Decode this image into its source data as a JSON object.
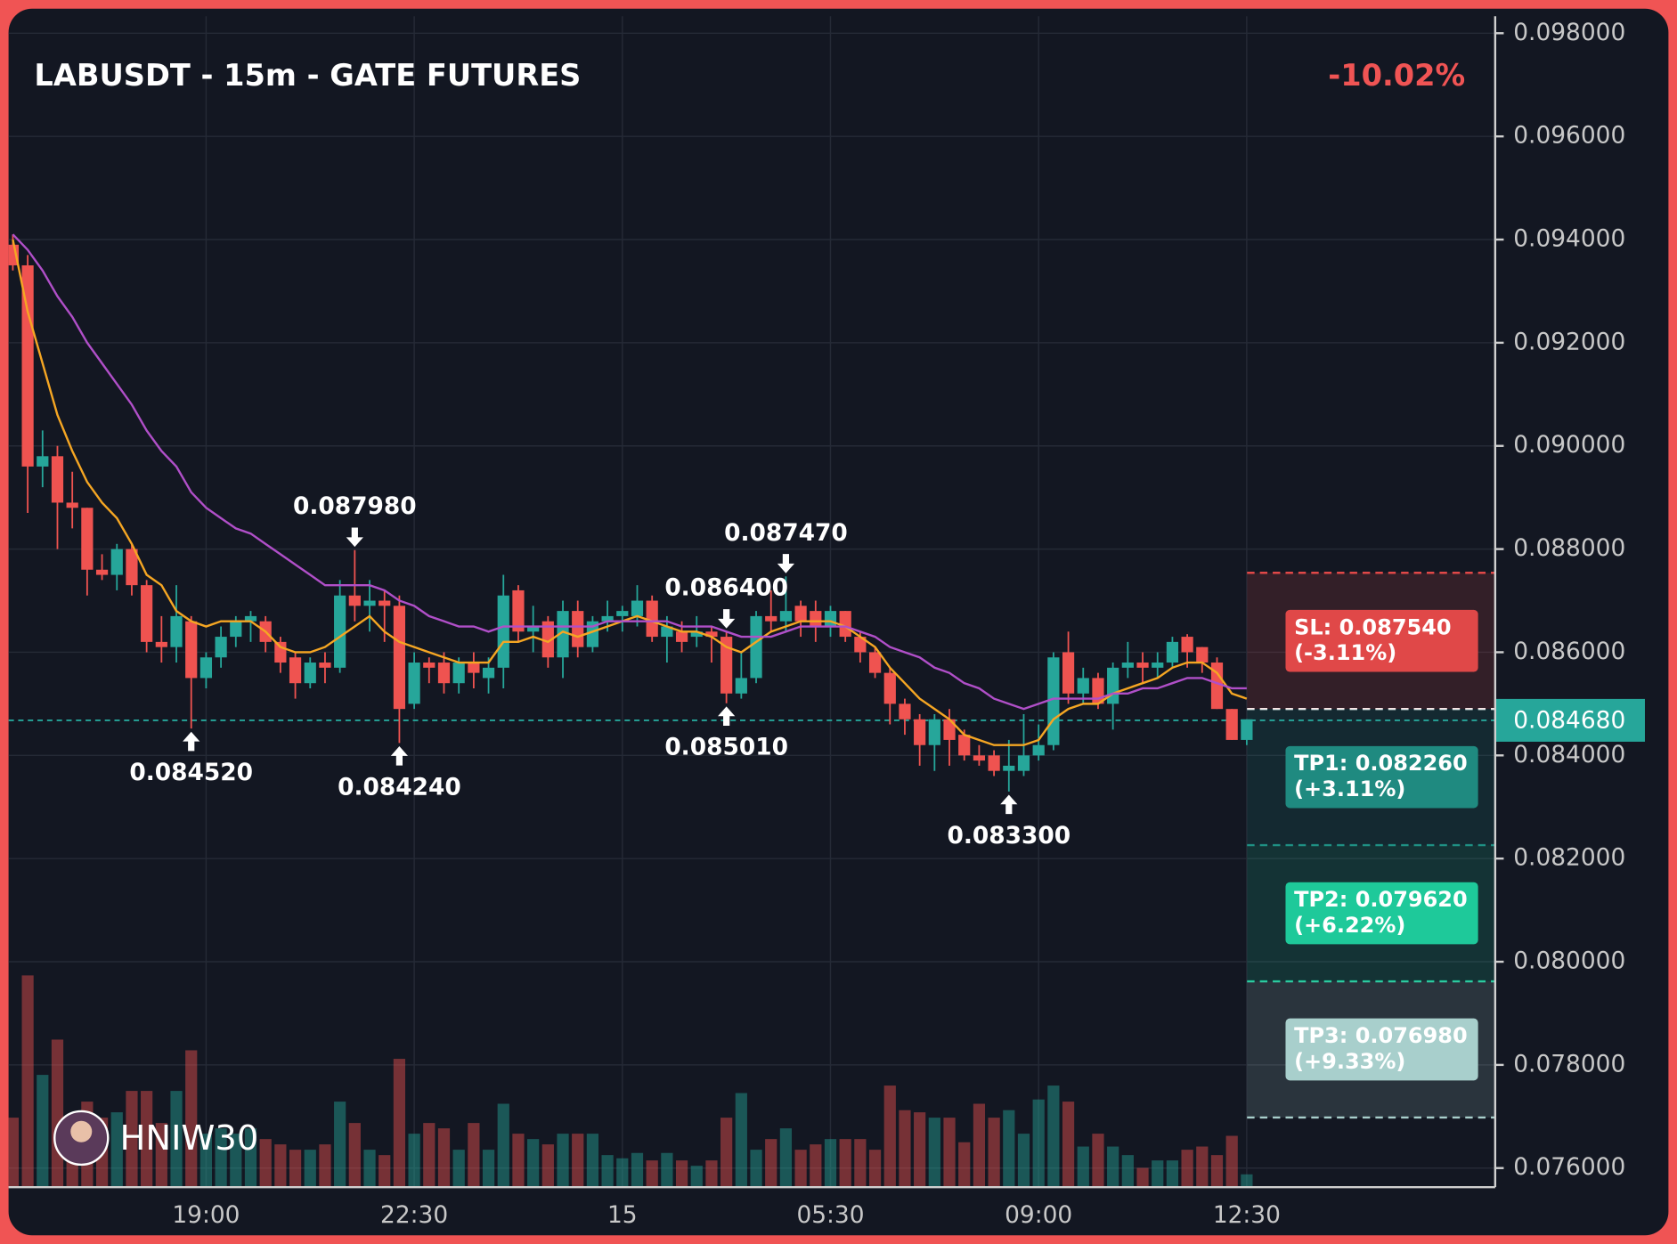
{
  "chart_data": {
    "type": "candlestick",
    "title": "LABUSDT - 15m - GATE FUTURES",
    "change": "-10.02%",
    "watermark": "HNIW30",
    "categories": [
      null,
      null,
      null,
      null,
      null,
      null,
      null,
      null,
      null,
      null,
      null,
      null,
      null,
      "19:00",
      null,
      null,
      null,
      null,
      null,
      null,
      null,
      null,
      null,
      null,
      null,
      null,
      null,
      "22:30",
      null,
      null,
      null,
      null,
      null,
      null,
      null,
      null,
      null,
      null,
      null,
      null,
      null,
      "15",
      null,
      null,
      null,
      null,
      null,
      null,
      null,
      null,
      null,
      null,
      null,
      null,
      null,
      "05:30",
      null,
      null,
      null,
      null,
      null,
      null,
      null,
      null,
      null,
      null,
      null,
      null,
      null,
      "09:00",
      null,
      null,
      null,
      null,
      null,
      null,
      null,
      null,
      null,
      null,
      null,
      null,
      null,
      "12:30"
    ],
    "open": [
      0.0939,
      0.0935,
      0.0896,
      0.0898,
      0.0889,
      0.0888,
      0.0876,
      0.0875,
      0.088,
      0.0873,
      0.0862,
      0.0861,
      0.0866,
      0.0855,
      0.0859,
      0.0863,
      0.0866,
      0.0866,
      0.0862,
      0.0859,
      0.0854,
      0.0858,
      0.0857,
      0.0871,
      0.0869,
      0.087,
      0.0869,
      0.085,
      0.0858,
      0.0858,
      0.0854,
      0.0858,
      0.0855,
      0.0857,
      0.0872,
      0.0864,
      0.0866,
      0.0859,
      0.0868,
      0.0861,
      0.0866,
      0.0867,
      0.0867,
      0.087,
      0.0863,
      0.0864,
      0.0863,
      0.0864,
      0.0863,
      0.0852,
      0.0855,
      0.0867,
      0.0866,
      0.0869,
      0.0868,
      0.0865,
      0.0868,
      0.0863,
      0.086,
      0.0856,
      0.085,
      0.0847,
      0.0842,
      0.0847,
      0.0844,
      0.084,
      0.084,
      0.0837,
      0.0837,
      0.084,
      0.0842,
      0.086,
      0.0852,
      0.0855,
      0.085,
      0.0857,
      0.0858,
      0.0857,
      0.0858,
      0.0863,
      0.0861,
      0.0858,
      0.0849,
      0.0843
    ],
    "high": [
      0.0941,
      0.0937,
      0.0903,
      0.09,
      0.0895,
      0.0888,
      0.0879,
      0.0881,
      0.0881,
      0.0874,
      0.0867,
      0.0873,
      0.0867,
      0.086,
      0.0865,
      0.0867,
      0.0868,
      0.0867,
      0.0863,
      0.086,
      0.0859,
      0.086,
      0.0874,
      0.08798,
      0.0874,
      0.0872,
      0.0871,
      0.086,
      0.0859,
      0.086,
      0.0859,
      0.086,
      0.0859,
      0.0875,
      0.0873,
      0.0869,
      0.0867,
      0.087,
      0.087,
      0.0867,
      0.087,
      0.0869,
      0.0873,
      0.0871,
      0.0867,
      0.0866,
      0.0867,
      0.0865,
      0.0864,
      0.086,
      0.0868,
      0.0872,
      0.08747,
      0.087,
      0.087,
      0.0869,
      0.0868,
      0.0864,
      0.0861,
      0.0857,
      0.0851,
      0.0848,
      0.0848,
      0.0849,
      0.0845,
      0.0842,
      0.0841,
      0.0843,
      0.0848,
      0.0846,
      0.086,
      0.0864,
      0.0857,
      0.0856,
      0.0858,
      0.0862,
      0.086,
      0.086,
      0.0863,
      0.08635,
      0.0861,
      0.0859,
      0.0849,
      0.0847
    ],
    "low": [
      0.0934,
      0.0887,
      0.0892,
      0.088,
      0.0884,
      0.0871,
      0.0874,
      0.0872,
      0.0871,
      0.086,
      0.0858,
      0.0858,
      0.08452,
      0.0853,
      0.0857,
      0.0861,
      0.0862,
      0.086,
      0.0856,
      0.0851,
      0.0853,
      0.0854,
      0.0856,
      0.0866,
      0.0864,
      0.0862,
      0.08424,
      0.0849,
      0.0854,
      0.0852,
      0.0852,
      0.0853,
      0.0852,
      0.0853,
      0.0862,
      0.086,
      0.0857,
      0.0855,
      0.0859,
      0.086,
      0.0864,
      0.0864,
      0.0865,
      0.0862,
      0.0858,
      0.086,
      0.0861,
      0.0858,
      0.08501,
      0.0851,
      0.0854,
      0.0864,
      0.0864,
      0.0863,
      0.0862,
      0.0863,
      0.0862,
      0.0858,
      0.0855,
      0.0846,
      0.0844,
      0.0838,
      0.0837,
      0.0838,
      0.0839,
      0.0838,
      0.0836,
      0.0833,
      0.0836,
      0.0839,
      0.0841,
      0.085,
      0.085,
      0.0849,
      0.0845,
      0.0855,
      0.0854,
      0.0855,
      0.0857,
      0.0857,
      0.0856,
      0.0849,
      0.0843,
      0.0842
    ],
    "close": [
      0.0935,
      0.0896,
      0.0898,
      0.0889,
      0.0888,
      0.0876,
      0.0875,
      0.088,
      0.0873,
      0.0862,
      0.0861,
      0.0867,
      0.0855,
      0.0859,
      0.0863,
      0.0866,
      0.0867,
      0.0862,
      0.0858,
      0.0854,
      0.0858,
      0.0857,
      0.0871,
      0.0869,
      0.087,
      0.0869,
      0.0849,
      0.0858,
      0.0857,
      0.0854,
      0.0858,
      0.0856,
      0.0857,
      0.0871,
      0.0864,
      0.0865,
      0.0859,
      0.0868,
      0.0861,
      0.0866,
      0.0867,
      0.0868,
      0.087,
      0.0863,
      0.0865,
      0.0862,
      0.0864,
      0.0863,
      0.0852,
      0.0855,
      0.0867,
      0.0866,
      0.0868,
      0.0866,
      0.0865,
      0.0868,
      0.0863,
      0.086,
      0.0856,
      0.085,
      0.0847,
      0.0842,
      0.0847,
      0.0843,
      0.084,
      0.0839,
      0.0837,
      0.0838,
      0.084,
      0.0842,
      0.0859,
      0.0852,
      0.0855,
      0.085,
      0.0857,
      0.0858,
      0.0857,
      0.0858,
      0.0862,
      0.086,
      0.0858,
      0.0849,
      0.0843,
      0.0847
    ],
    "volume": [
      65,
      198,
      105,
      138,
      60,
      80,
      65,
      70,
      90,
      90,
      60,
      90,
      128,
      50,
      55,
      50,
      55,
      45,
      40,
      35,
      35,
      40,
      80,
      60,
      35,
      30,
      120,
      50,
      60,
      55,
      35,
      60,
      35,
      78,
      50,
      45,
      40,
      50,
      50,
      50,
      30,
      27,
      32,
      25,
      32,
      25,
      20,
      25,
      65,
      88,
      35,
      45,
      55,
      35,
      40,
      45,
      45,
      45,
      35,
      95,
      72,
      70,
      65,
      65,
      42,
      78,
      65,
      72,
      50,
      82,
      95,
      80,
      38,
      50,
      38,
      30,
      18,
      25,
      25,
      35,
      38,
      30,
      48,
      12
    ],
    "vlim": [
      0,
      200
    ],
    "up_color": "#26a69a",
    "down_color": "#ef5350",
    "lines": [
      {
        "color": "#f5a623",
        "values": [
          0.094,
          0.0926,
          0.0916,
          0.0906,
          0.0899,
          0.0893,
          0.0889,
          0.0886,
          0.0881,
          0.0875,
          0.0873,
          0.0868,
          0.0866,
          0.0865,
          0.0866,
          0.0866,
          0.0866,
          0.0864,
          0.0861,
          0.086,
          0.086,
          0.0861,
          0.0863,
          0.0865,
          0.0867,
          0.0864,
          0.0862,
          0.0861,
          0.086,
          0.0859,
          0.0858,
          0.0858,
          0.0858,
          0.0862,
          0.0862,
          0.0863,
          0.0862,
          0.0864,
          0.0863,
          0.0864,
          0.0865,
          0.0866,
          0.0867,
          0.0866,
          0.0865,
          0.0864,
          0.0864,
          0.0863,
          0.0861,
          0.086,
          0.0862,
          0.0864,
          0.0865,
          0.0866,
          0.0866,
          0.0866,
          0.0865,
          0.0863,
          0.0861,
          0.0857,
          0.0854,
          0.0851,
          0.0849,
          0.0847,
          0.0844,
          0.0843,
          0.0842,
          0.0842,
          0.0842,
          0.0843,
          0.0847,
          0.0849,
          0.085,
          0.085,
          0.0852,
          0.0853,
          0.0854,
          0.0855,
          0.0857,
          0.0858,
          0.0858,
          0.0856,
          0.0852,
          0.0851
        ]
      },
      {
        "color": "#b04fc8",
        "values": [
          0.0941,
          0.0938,
          0.0934,
          0.0929,
          0.0925,
          0.092,
          0.0916,
          0.0912,
          0.0908,
          0.0903,
          0.0899,
          0.0896,
          0.0891,
          0.0888,
          0.0886,
          0.0884,
          0.0883,
          0.0881,
          0.0879,
          0.0877,
          0.0875,
          0.0873,
          0.0873,
          0.0873,
          0.0873,
          0.0872,
          0.087,
          0.0869,
          0.0867,
          0.0866,
          0.0865,
          0.0865,
          0.0864,
          0.0865,
          0.0865,
          0.0865,
          0.0865,
          0.0865,
          0.0865,
          0.0865,
          0.0866,
          0.0866,
          0.0866,
          0.0866,
          0.0866,
          0.0865,
          0.0865,
          0.0865,
          0.0864,
          0.0863,
          0.0863,
          0.0863,
          0.0864,
          0.0865,
          0.0865,
          0.0865,
          0.0865,
          0.0864,
          0.0863,
          0.0861,
          0.086,
          0.0859,
          0.0857,
          0.0856,
          0.0854,
          0.0853,
          0.0851,
          0.085,
          0.0849,
          0.085,
          0.0851,
          0.0851,
          0.0851,
          0.0851,
          0.0852,
          0.0852,
          0.0853,
          0.0853,
          0.0854,
          0.0855,
          0.0855,
          0.0854,
          0.0853,
          0.0853
        ]
      }
    ],
    "swing_highs": [
      {
        "value": 0.08798,
        "label": "0.087980"
      },
      {
        "value": 0.08747,
        "label": "0.087470"
      },
      {
        "value": 0.0864,
        "label": "0.086400"
      }
    ],
    "swing_lows": [
      {
        "value": 0.08452,
        "label": "0.084520"
      },
      {
        "value": 0.08424,
        "label": "0.084240"
      },
      {
        "value": 0.08501,
        "label": "0.085010"
      },
      {
        "value": 0.0833,
        "label": "0.083300"
      }
    ],
    "entry": 0.0849,
    "levels": [
      {
        "value": 0.08754,
        "label": "SL: 0.087540",
        "pct": "(-3.11%)",
        "color": "#e04848"
      },
      {
        "value": 0.08226,
        "label": "TP1: 0.082260",
        "pct": "(+3.11%)",
        "color": "#1f8a80"
      },
      {
        "value": 0.07962,
        "label": "TP2: 0.079620",
        "pct": "(+6.22%)",
        "color": "#1ec99a"
      },
      {
        "value": 0.07698,
        "label": "TP3: 0.076980",
        "pct": "(+9.33%)",
        "color": "#a8cfcc"
      }
    ],
    "current": {
      "value": 0.08468,
      "label": "0.084680"
    },
    "ylim": [
      0.07563,
      0.09833
    ],
    "yticks": [
      {
        "value": 0.098,
        "label": "0.098000"
      },
      {
        "value": 0.096,
        "label": "0.096000"
      },
      {
        "value": 0.094,
        "label": "0.094000"
      },
      {
        "value": 0.092,
        "label": "0.092000"
      },
      {
        "value": 0.09,
        "label": "0.090000"
      },
      {
        "value": 0.088,
        "label": "0.088000"
      },
      {
        "value": 0.086,
        "label": "0.086000"
      },
      {
        "value": 0.084,
        "label": "0.084000"
      },
      {
        "value": 0.082,
        "label": "0.082000"
      },
      {
        "value": 0.08,
        "label": "0.080000"
      },
      {
        "value": 0.078,
        "label": "0.078000"
      },
      {
        "value": 0.076,
        "label": "0.076000"
      }
    ],
    "grid": true
  }
}
